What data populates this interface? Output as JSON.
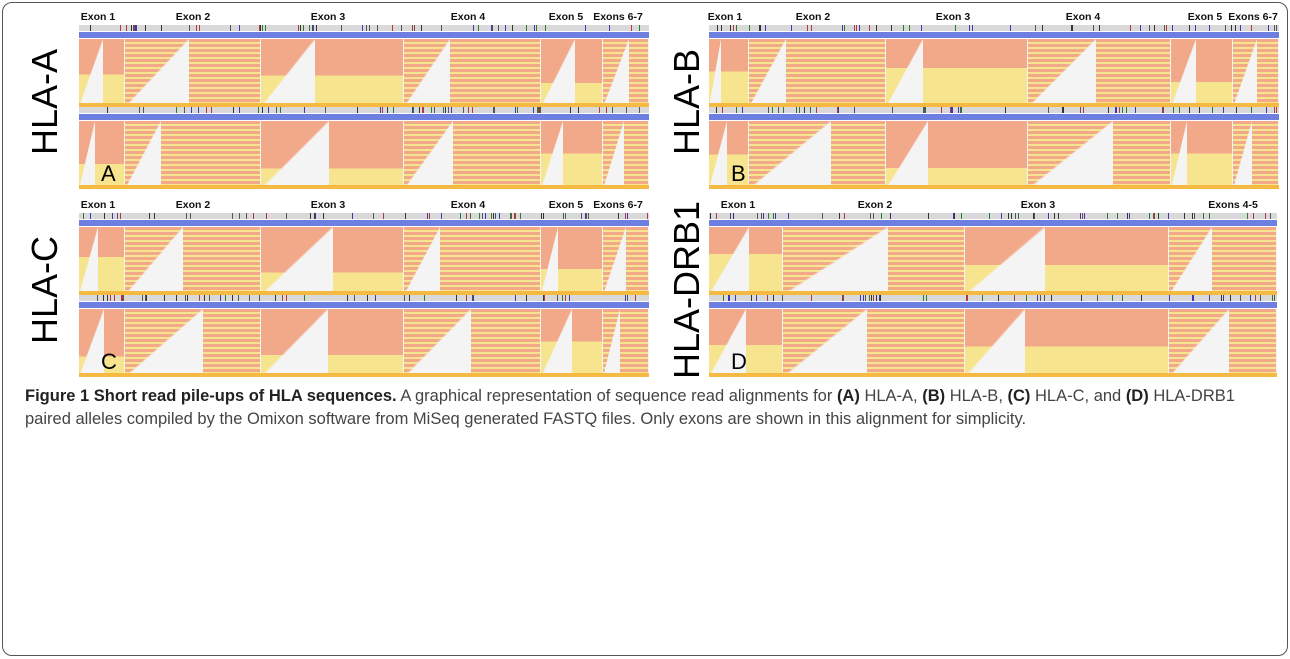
{
  "panels": [
    {
      "gene": "HLA-A",
      "letter": "A",
      "exons": [
        "Exon 1",
        "Exon 2",
        "Exon 3",
        "Exon 4",
        "Exon 5",
        "Exons 6-7"
      ]
    },
    {
      "gene": "HLA-B",
      "letter": "B",
      "exons": [
        "Exon 1",
        "Exon 2",
        "Exon 3",
        "Exon 4",
        "Exon 5",
        "Exons 6-7"
      ]
    },
    {
      "gene": "HLA-C",
      "letter": "C",
      "exons": [
        "Exon 1",
        "Exon 2",
        "Exon 3",
        "Exon 4",
        "Exon 5",
        "Exons 6-7"
      ]
    },
    {
      "gene": "HLA-DRB1",
      "letter": "D",
      "exons": [
        "Exon 1",
        "Exon 2",
        "Exon 3",
        "Exons 4-5"
      ]
    }
  ],
  "caption": {
    "title": "Figure 1 Short read pile-ups of HLA sequences.",
    "intro": "A graphical representation of sequence read alignments for",
    "refs": [
      {
        "letter": "(A)",
        "text": "HLA-A,"
      },
      {
        "letter": "(B)",
        "text": "HLA-B,"
      },
      {
        "letter": "(C)",
        "text": "HLA-C,"
      },
      {
        "letter": "(D)",
        "text": "HLA-DRB1 paired alleles compiled by the Omixon software from MiSeq generated FASTQ files. Only exons are shown in this alignment for simplicity."
      }
    ],
    "and": "and"
  },
  "colors": {
    "salmon": "#f2a98a",
    "yellow": "#f7e48f",
    "white_gap": "#f4f4f4",
    "coverage": "#f6b941",
    "reference": "#6d7fe0"
  }
}
